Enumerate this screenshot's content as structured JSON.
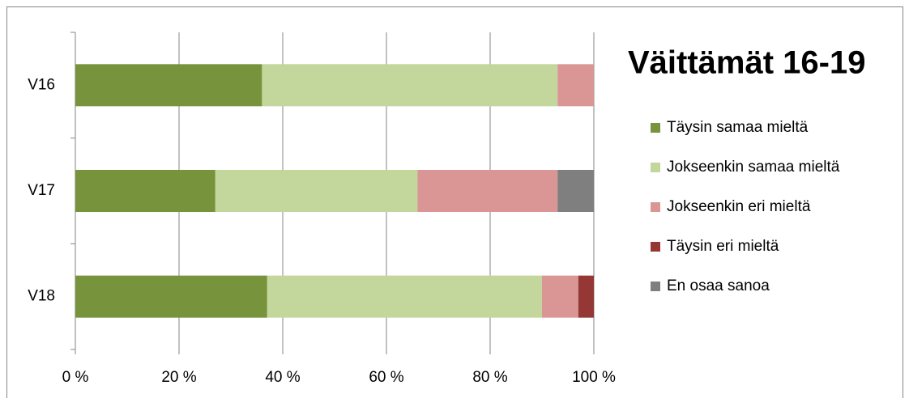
{
  "chart_data": {
    "type": "stacked_barh",
    "title": "Väittämät 16-19",
    "categories": [
      "V16",
      "V17",
      "V18"
    ],
    "series": [
      {
        "name": "Täysin samaa mieltä",
        "color": "#77933c",
        "values": [
          36,
          27,
          37
        ]
      },
      {
        "name": "Jokseenkin samaa mieltä",
        "color": "#c3d69b",
        "values": [
          57,
          39,
          53
        ]
      },
      {
        "name": "Jokseenkin eri mieltä",
        "color": "#d99694",
        "values": [
          7,
          27,
          7
        ]
      },
      {
        "name": "Täysin eri mieltä",
        "color": "#953735",
        "values": [
          0,
          0,
          3
        ]
      },
      {
        "name": "En osaa sanoa",
        "color": "#7f7f7f",
        "values": [
          0,
          7,
          0
        ]
      }
    ],
    "xlim": [
      0,
      100
    ],
    "xticks": [
      {
        "value": 0,
        "label": "0 %"
      },
      {
        "value": 20,
        "label": "20 %"
      },
      {
        "value": 40,
        "label": "40 %"
      },
      {
        "value": 60,
        "label": "60 %"
      },
      {
        "value": 80,
        "label": "80 %"
      },
      {
        "value": 100,
        "label": "100 %"
      }
    ],
    "grid": true,
    "legend": "right"
  }
}
